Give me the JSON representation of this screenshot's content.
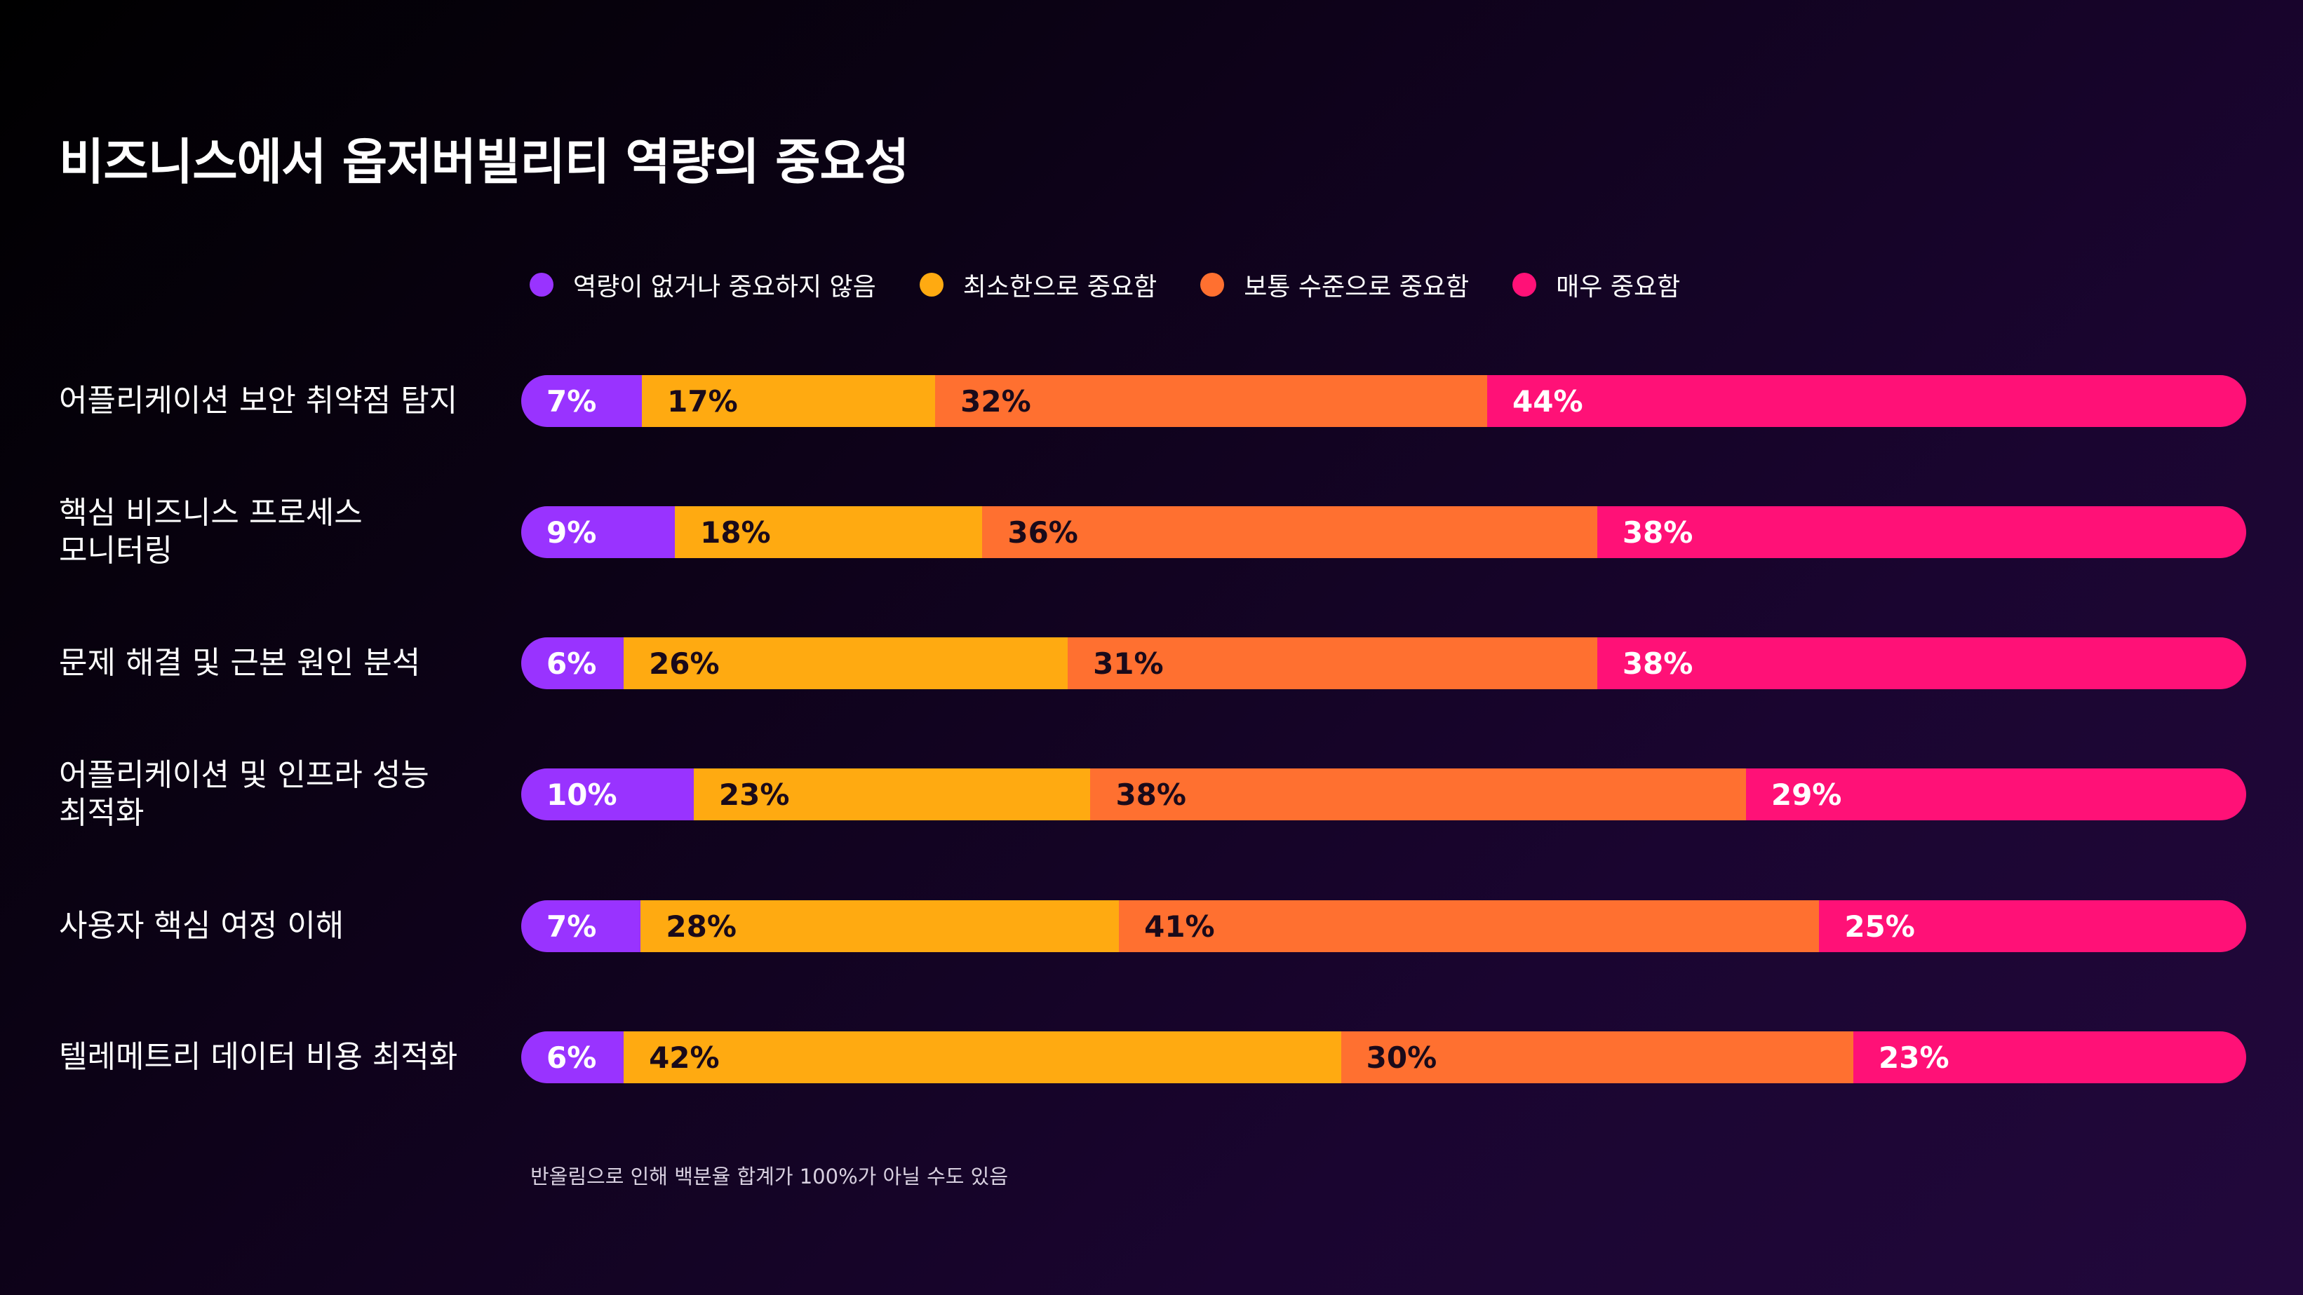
{
  "chart_data": {
    "type": "bar",
    "orientation": "horizontal",
    "stacked": true,
    "title": "비즈니스에서 옵저버빌리티 역량의 중요성",
    "legend_position": "top",
    "categories": [
      "어플리케이션 보안 취약점 탐지",
      "핵심 비즈니스 프로세스\n모니터링",
      "문제 해결 및 근본 원인 분석",
      "어플리케이션 및 인프라 성능\n최적화",
      "사용자 핵심 여정 이해",
      "텔레메트리 데이터 비용 최적화"
    ],
    "series": [
      {
        "name": "역량이 없거나 중요하지 않음",
        "color": "#9933ff",
        "label_color": "#ffffff",
        "values": [
          7,
          9,
          6,
          10,
          7,
          6
        ]
      },
      {
        "name": "최소한으로 중요함",
        "color": "#ffaa11",
        "label_color": "#1a0a1a",
        "values": [
          17,
          18,
          26,
          23,
          28,
          42
        ]
      },
      {
        "name": "보통 수준으로 중요함",
        "color": "#ff7030",
        "label_color": "#1a0a1a",
        "values": [
          32,
          36,
          31,
          38,
          41,
          30
        ]
      },
      {
        "name": "매우 중요함",
        "color": "#ff1177",
        "label_color": "#ffffff",
        "values": [
          44,
          38,
          38,
          29,
          25,
          23
        ]
      }
    ],
    "value_suffix": "%",
    "footnote": "반올림으로 인해 백분율 합계가 100%가 아닐 수도 있음"
  }
}
